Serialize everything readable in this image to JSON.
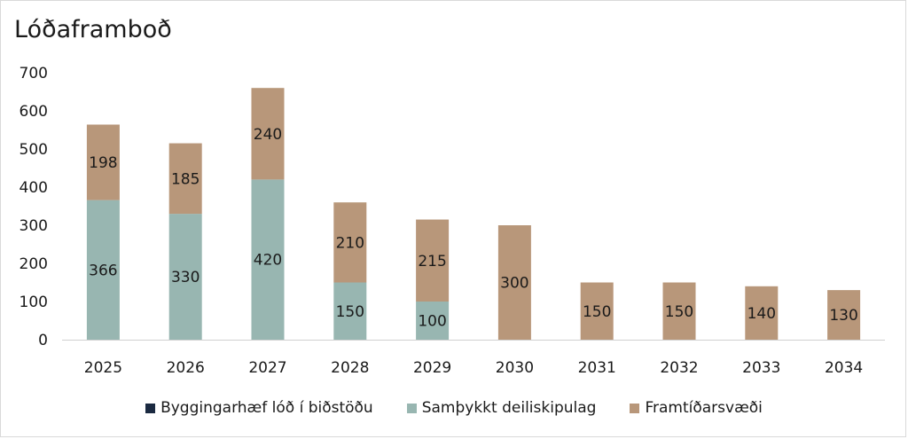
{
  "chart_data": {
    "type": "bar",
    "stacked": true,
    "title": "Lóðaframboð",
    "categories": [
      "2025",
      "2026",
      "2027",
      "2028",
      "2029",
      "2030",
      "2031",
      "2032",
      "2033",
      "2034"
    ],
    "series": [
      {
        "name": "Byggingarhæf lóð í biðstöðu",
        "color": "#1b2a41",
        "values": [
          0,
          0,
          0,
          0,
          0,
          0,
          0,
          0,
          0,
          0
        ]
      },
      {
        "name": "Samþykkt deiliskipulag",
        "color": "#98b6b1",
        "values": [
          366,
          330,
          420,
          150,
          100,
          0,
          0,
          0,
          0,
          0
        ]
      },
      {
        "name": "Framtíðarsvæði",
        "color": "#b8977a",
        "values": [
          198,
          185,
          240,
          210,
          215,
          300,
          150,
          150,
          140,
          130
        ]
      }
    ],
    "ylim": [
      0,
      700
    ],
    "yticks": [
      0,
      100,
      200,
      300,
      400,
      500,
      600,
      700
    ],
    "grid": false,
    "legend_position": "bottom"
  }
}
